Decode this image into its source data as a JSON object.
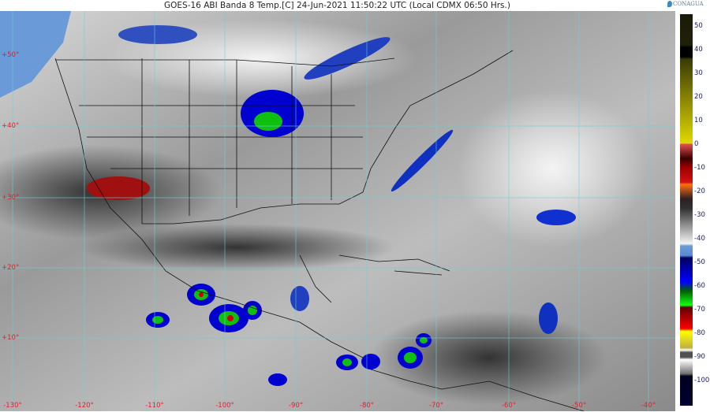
{
  "header": {
    "title": "GOES-16 ABI Banda 8 Temp.[C] 24-Jun-2021 11:50:22 UTC (Local CDMX  06:50 Hrs.)",
    "logo_text": "CONAGUA"
  },
  "map": {
    "latitude_labels": [
      "+50°",
      "+40°",
      "+30°",
      "+20°",
      "+10°"
    ],
    "longitude_labels": [
      "-130°",
      "-120°",
      "-110°",
      "-100°",
      "-90°",
      "-80°",
      "-70°",
      "-60°",
      "-50°",
      "-40°"
    ]
  },
  "colorbar": {
    "unit": "Temp.[C]",
    "tick_labels": [
      "50",
      "40",
      "30",
      "20",
      "10",
      "0",
      "-10",
      "-20",
      "-30",
      "-40",
      "-50",
      "-60",
      "-70",
      "-80",
      "-90",
      "-100"
    ],
    "stops": [
      {
        "value": 55,
        "color": "#1a1a08"
      },
      {
        "value": 42,
        "color": "#20200a"
      },
      {
        "value": 41,
        "color": "#000000"
      },
      {
        "value": 37,
        "color": "#000000"
      },
      {
        "value": 36,
        "color": "#3a3a06"
      },
      {
        "value": 0.5,
        "color": "#e0d800"
      },
      {
        "value": 0,
        "color": "#e05050"
      },
      {
        "value": -6,
        "color": "#3a0000"
      },
      {
        "value": -10,
        "color": "#a00000"
      },
      {
        "value": -16,
        "color": "#d01010"
      },
      {
        "value": -17,
        "color": "#ff7010"
      },
      {
        "value": -23,
        "color": "#302020"
      },
      {
        "value": -27,
        "color": "#303030"
      },
      {
        "value": -42,
        "color": "#f5f5f5"
      },
      {
        "value": -43,
        "color": "#6a9ad8"
      },
      {
        "value": -47,
        "color": "#5a8ad0"
      },
      {
        "value": -48,
        "color": "#000060"
      },
      {
        "value": -58,
        "color": "#0000ff"
      },
      {
        "value": -62,
        "color": "#006000"
      },
      {
        "value": -68,
        "color": "#10ff10"
      },
      {
        "value": -69,
        "color": "#600000"
      },
      {
        "value": -78,
        "color": "#ff0000"
      },
      {
        "value": -79,
        "color": "#ffff00"
      },
      {
        "value": -86,
        "color": "#c0b040"
      },
      {
        "value": -87,
        "color": "#ffffff"
      },
      {
        "value": -88,
        "color": "#505050"
      },
      {
        "value": -90,
        "color": "#505050"
      },
      {
        "value": -91,
        "color": "#ffffff"
      },
      {
        "value": -97,
        "color": "#707070"
      },
      {
        "value": -98,
        "color": "#000020"
      },
      {
        "value": -110,
        "color": "#000030"
      }
    ]
  }
}
